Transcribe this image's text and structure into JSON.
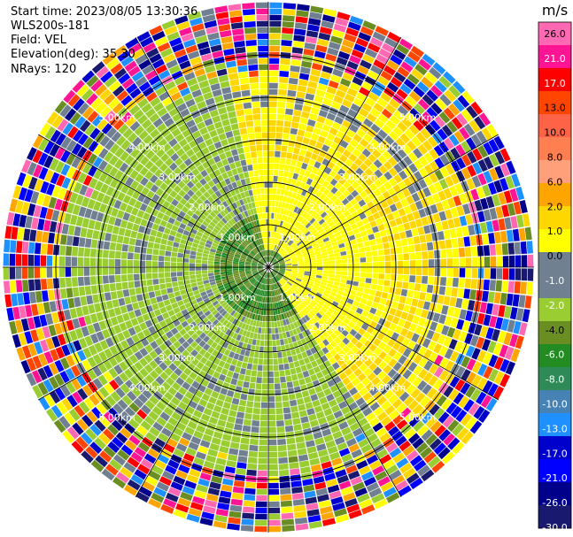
{
  "info": {
    "start_time": "Start time: 2023/08/05 13:30:36",
    "station": "WLS200s-181",
    "field": "Field: VEL",
    "elevation": "Elevation(deg): 35.30",
    "nrays": "NRays: 120"
  },
  "chart_data": {
    "type": "heatmap",
    "projection": "polar-ppi",
    "unit_label": "m/s",
    "range_rings_km": [
      1,
      2,
      3,
      4,
      5
    ],
    "range_ring_labels": [
      "1.00km",
      "2.00km",
      "3.00km",
      "4.00km",
      "5.00km"
    ],
    "colorbar_ticks": [
      "26.0",
      "21.0",
      "17.0",
      "13.0",
      "10.0",
      "8.0",
      "6.0",
      "2.0",
      "1.0",
      "0.0",
      "-1.0",
      "-2.0",
      "-4.0",
      "-6.0",
      "-8.0",
      "-10.0",
      "-13.0",
      "-17.0",
      "-21.0",
      "-26.0",
      "-30.0"
    ],
    "colorbar_colors": [
      "#ff69b4",
      "#ff1493",
      "#ff0000",
      "#ff4500",
      "#ff6347",
      "#ff7f50",
      "#ffa07a",
      "#ffa500",
      "#ffd700",
      "#ffff00",
      "#708090",
      "#708090",
      "#9acd32",
      "#6b8e23",
      "#228b22",
      "#2e8b57",
      "#4682b4",
      "#1e90ff",
      "#0000cd",
      "#0000ff",
      "#00008b",
      "#191970"
    ],
    "azimuth_rays": 120,
    "max_range_km": 5.0
  }
}
